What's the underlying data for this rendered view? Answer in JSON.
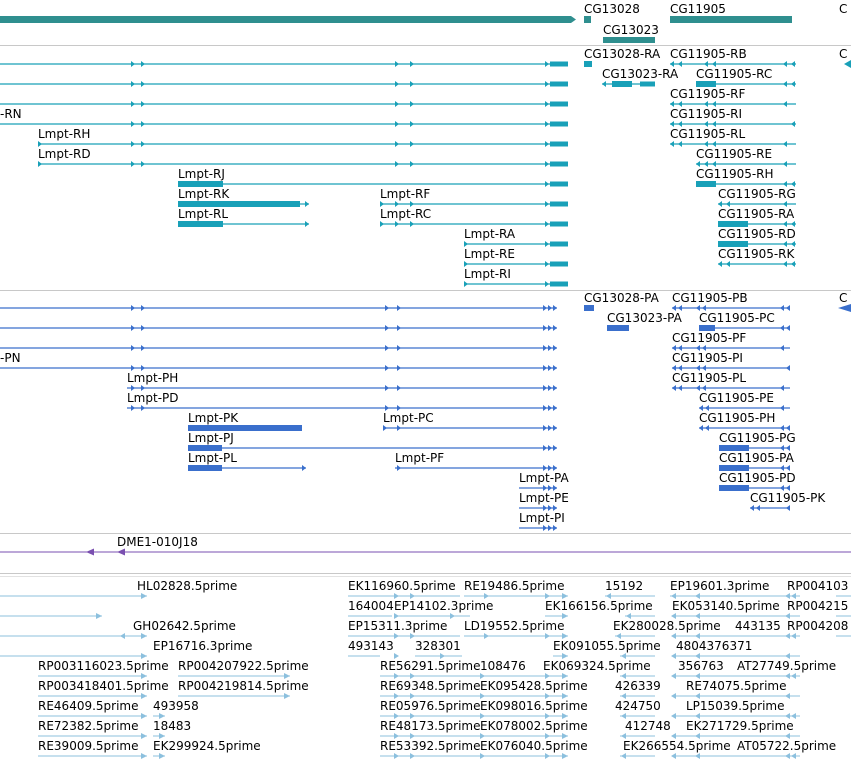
{
  "colors": {
    "gene": "#2f8f8f",
    "transcript": "#19a0b8",
    "protein": "#3a6fcc",
    "clone": "#7a4fb0",
    "est": "#8cc0de",
    "divider": "#c8c8c8"
  },
  "tracks": {
    "genes": {
      "labels": [
        "CG13028",
        "CG13023",
        "CG11905",
        "C"
      ]
    },
    "transcripts": {
      "labels": [
        "CG13028-RA",
        "CG11905-RB",
        "CG13023-RA",
        "CG11905-RC",
        "-RN",
        "CG11905-RF",
        "CG11905-RI",
        "Lmpt-RH",
        "CG11905-RL",
        "Lmpt-RD",
        "CG11905-RE",
        "Lmpt-RJ",
        "CG11905-RH",
        "Lmpt-RK",
        "Lmpt-RF",
        "CG11905-RG",
        "Lmpt-RL",
        "Lmpt-RC",
        "CG11905-RA",
        "Lmpt-RA",
        "CG11905-RD",
        "Lmpt-RE",
        "CG11905-RK",
        "Lmpt-RI",
        "C"
      ]
    },
    "proteins": {
      "labels": [
        "CG13028-PA",
        "CG11905-PB",
        "CG13023-PA",
        "CG11905-PC",
        "CG11905-PF",
        "-PN",
        "CG11905-PI",
        "Lmpt-PH",
        "CG11905-PL",
        "Lmpt-PD",
        "CG11905-PE",
        "Lmpt-PK",
        "Lmpt-PC",
        "CG11905-PH",
        "Lmpt-PJ",
        "CG11905-PG",
        "Lmpt-PL",
        "Lmpt-PF",
        "CG11905-PA",
        "Lmpt-PA",
        "CG11905-PD",
        "Lmpt-PE",
        "CG11905-PK",
        "Lmpt-PI",
        "C"
      ]
    },
    "clones": {
      "labels": [
        "DME1-010J18"
      ]
    },
    "ests": {
      "labels": [
        "HL02828.5prime",
        "EK116960.5prime",
        "RE19486.5prime",
        "15192",
        "EP19601.3prime",
        "RP004103",
        "164004",
        "EP14102.3prime",
        "EK166156.5prime",
        "EK053140.5prime",
        "RP004215",
        "GH02642.5prime",
        "EP15311.3prime",
        "LD19552.5prime",
        "EK280028.5prime",
        "443135",
        "RP004208",
        "EP16716.3prime",
        "493143",
        "328301",
        "EK091055.5prime",
        "4804376371",
        "RP003116023.5prime",
        "RP004207922.5prime",
        "RE56291.5prime",
        "108476",
        "EK069324.5prime",
        "356763",
        "AT27749.5prime",
        "RP003418401.5prime",
        "RP004219814.5prime",
        "RE69348.5prime",
        "EK095428.5prime",
        "426339",
        "RE74075.5prime",
        "RE46409.5prime",
        "493958",
        "RE05976.5prime",
        "EK098016.5prime",
        "424750",
        "LP15039.5prime",
        "RE72382.5prime",
        "18483",
        "RE48173.5prime",
        "EK078002.5prime",
        "412748",
        "EK271729.5prime",
        "RE39009.5prime",
        "EK299924.5prime",
        "RE53392.5prime",
        "EK076040.5prime",
        "EK266554.5prime",
        "AT05722.5prime"
      ]
    }
  }
}
